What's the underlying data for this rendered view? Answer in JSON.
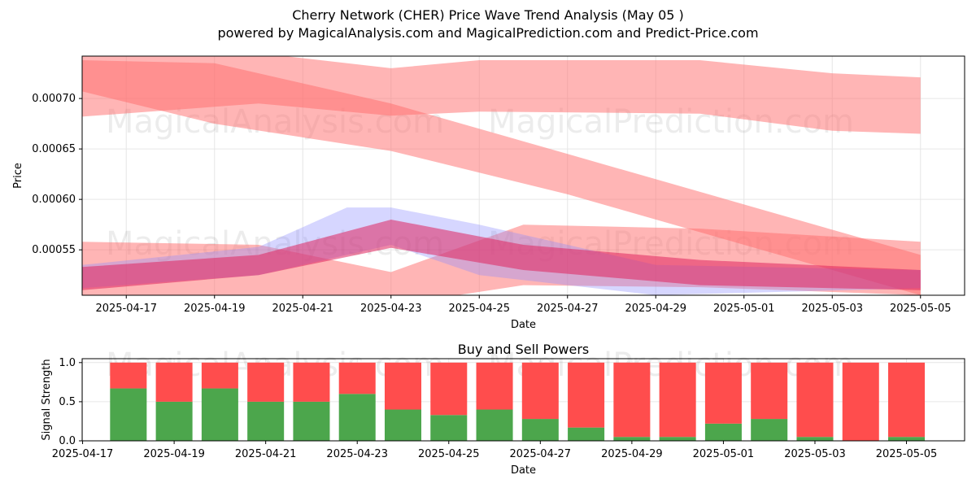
{
  "title": "Cherry Network (CHER) Price Wave Trend Analysis (May 05 )",
  "subtitle": "powered by MagicalAnalysis.com and MagicalPrediction.com and Predict-Price.com",
  "watermarks": [
    "MagicalAnalysis.com",
    "MagicalPrediction.com"
  ],
  "chart_data": [
    {
      "type": "area",
      "xlabel": "Date",
      "ylabel": "Price",
      "grid": true,
      "xlim": [
        "2025-04-16",
        "2025-05-06"
      ],
      "ylim": [
        0.000505,
        0.000742
      ],
      "x_ticks": [
        "2025-04-17",
        "2025-04-19",
        "2025-04-21",
        "2025-04-23",
        "2025-04-25",
        "2025-04-27",
        "2025-04-29",
        "2025-05-01",
        "2025-05-03",
        "2025-05-05"
      ],
      "y_ticks": [
        "0.00055",
        "0.00060",
        "0.00065",
        "0.00070"
      ],
      "colors": {
        "red_band": "#ff6b6b",
        "blue_band": "#8a8aff",
        "dark_band": "#e0245e"
      },
      "bands": [
        {
          "color": "red",
          "x": [
            "2025-04-16",
            "2025-04-20",
            "2025-04-23",
            "2025-04-25",
            "2025-04-30",
            "2025-05-03",
            "2025-05-05"
          ],
          "upper": [
            0.000745,
            0.000745,
            0.00073,
            0.000738,
            0.000738,
            0.000725,
            0.000721
          ],
          "lower": [
            0.000682,
            0.000695,
            0.000683,
            0.000687,
            0.000685,
            0.000668,
            0.000665
          ]
        },
        {
          "color": "red",
          "x": [
            "2025-04-16",
            "2025-04-19",
            "2025-04-23",
            "2025-04-27",
            "2025-05-01",
            "2025-05-05"
          ],
          "upper": [
            0.000738,
            0.000735,
            0.000695,
            0.000645,
            0.000595,
            0.000545
          ],
          "lower": [
            0.000707,
            0.000675,
            0.000648,
            0.000605,
            0.000555,
            0.000505
          ]
        },
        {
          "color": "red",
          "x": [
            "2025-04-16",
            "2025-04-20",
            "2025-04-23",
            "2025-04-26",
            "2025-04-30",
            "2025-05-05"
          ],
          "upper": [
            0.000558,
            0.000555,
            0.000528,
            0.000575,
            0.000571,
            0.000558
          ],
          "lower": [
            0.000505,
            0.000505,
            0.000495,
            0.000515,
            0.000513,
            0.000505
          ]
        },
        {
          "color": "blue",
          "x": [
            "2025-04-16",
            "2025-04-20",
            "2025-04-22",
            "2025-04-23",
            "2025-04-25",
            "2025-04-29",
            "2025-05-05"
          ],
          "upper": [
            0.000535,
            0.000553,
            0.000592,
            0.000592,
            0.000575,
            0.000535,
            0.00053
          ],
          "lower": [
            0.000512,
            0.000525,
            0.000545,
            0.000555,
            0.000525,
            0.000505,
            0.000512
          ]
        },
        {
          "color": "dark",
          "x": [
            "2025-04-16",
            "2025-04-20",
            "2025-04-23",
            "2025-04-26",
            "2025-04-30",
            "2025-05-05"
          ],
          "upper": [
            0.000533,
            0.000545,
            0.00058,
            0.000555,
            0.00054,
            0.00053
          ],
          "lower": [
            0.00051,
            0.000525,
            0.000552,
            0.00053,
            0.000515,
            0.00051
          ]
        }
      ]
    },
    {
      "type": "bar",
      "title": "Buy and Sell Powers",
      "xlabel": "Date",
      "ylabel": "Signal Strength",
      "ylim": [
        0,
        1.05
      ],
      "grid": true,
      "x_ticks": [
        "2025-04-17",
        "2025-04-19",
        "2025-04-21",
        "2025-04-23",
        "2025-04-25",
        "2025-04-27",
        "2025-04-29",
        "2025-05-01",
        "2025-05-03",
        "2025-05-05"
      ],
      "y_ticks": [
        "0.0",
        "0.5",
        "1.0"
      ],
      "categories": [
        "2025-04-18",
        "2025-04-19",
        "2025-04-20",
        "2025-04-21",
        "2025-04-22",
        "2025-04-23",
        "2025-04-24",
        "2025-04-25",
        "2025-04-26",
        "2025-04-27",
        "2025-04-28",
        "2025-04-29",
        "2025-04-30",
        "2025-05-01",
        "2025-05-02",
        "2025-05-03",
        "2025-05-04",
        "2025-05-05"
      ],
      "colors": {
        "buy": "#4ca64c",
        "sell": "#ff4d4d"
      },
      "series": [
        {
          "values": [
            0.67,
            0.5,
            0.67,
            0.5,
            0.5,
            0.6,
            0.4,
            0.33,
            0.4,
            0.28,
            0.17,
            0.05,
            0.05,
            0.22,
            0.28,
            0.05,
            0.0,
            0.05
          ]
        },
        {
          "values": [
            0.33,
            0.5,
            0.33,
            0.5,
            0.5,
            0.4,
            0.6,
            0.67,
            0.6,
            0.72,
            0.83,
            0.95,
            0.95,
            0.78,
            0.72,
            0.95,
            1.0,
            0.95
          ]
        }
      ]
    }
  ]
}
